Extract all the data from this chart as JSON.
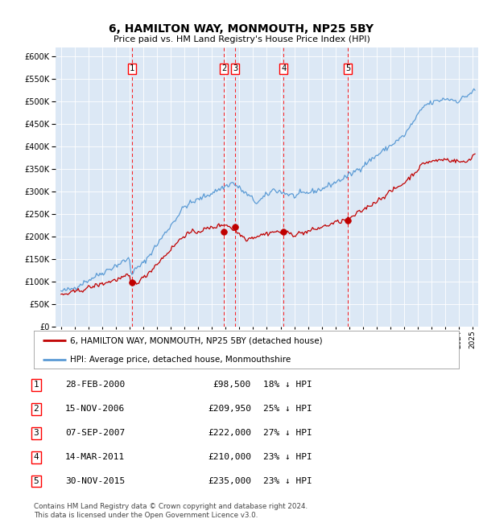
{
  "title": "6, HAMILTON WAY, MONMOUTH, NP25 5BY",
  "subtitle": "Price paid vs. HM Land Registry's House Price Index (HPI)",
  "legend_label_red": "6, HAMILTON WAY, MONMOUTH, NP25 5BY (detached house)",
  "legend_label_blue": "HPI: Average price, detached house, Monmouthshire",
  "footer": "Contains HM Land Registry data © Crown copyright and database right 2024.\nThis data is licensed under the Open Government Licence v3.0.",
  "sale_points": [
    {
      "num": 1,
      "date": "28-FEB-2000",
      "price": 98500,
      "pct": "18% ↓ HPI",
      "x_year": 2000.15
    },
    {
      "num": 2,
      "date": "15-NOV-2006",
      "price": 209950,
      "pct": "25% ↓ HPI",
      "x_year": 2006.88
    },
    {
      "num": 3,
      "date": "07-SEP-2007",
      "price": 222000,
      "pct": "27% ↓ HPI",
      "x_year": 2007.69
    },
    {
      "num": 4,
      "date": "14-MAR-2011",
      "price": 210000,
      "pct": "23% ↓ HPI",
      "x_year": 2011.21
    },
    {
      "num": 5,
      "date": "30-NOV-2015",
      "price": 235000,
      "pct": "23% ↓ HPI",
      "x_year": 2015.92
    }
  ],
  "hpi_color": "#5b9bd5",
  "price_color": "#c00000",
  "ylim": [
    0,
    620000
  ],
  "yticks": [
    0,
    50000,
    100000,
    150000,
    200000,
    250000,
    300000,
    350000,
    400000,
    450000,
    500000,
    550000,
    600000
  ],
  "xlim_start": 1994.6,
  "xlim_end": 2025.4,
  "plot_bg": "#dce8f5",
  "grid_color": "#ffffff"
}
